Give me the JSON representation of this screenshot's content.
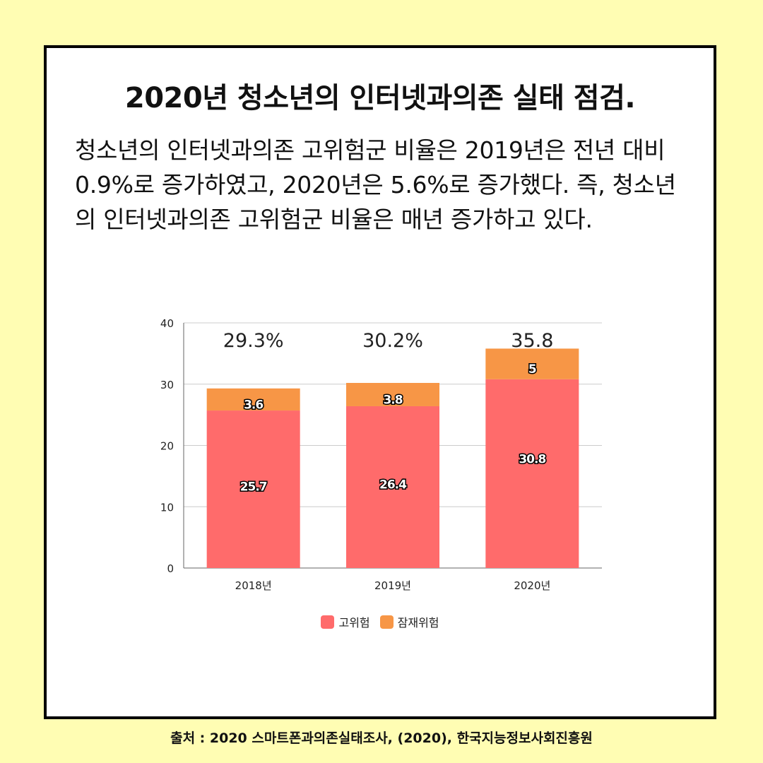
{
  "title": "2020년 청소년의 인터넷과의존 실태 점검.",
  "description": "청소년의 인터넷과의존 고위험군 비율은 2019년은 전년 대비 0.9%로 증가하였고, 2020년은 5.6%로 증가했다. 즉, 청소년의 인터넷과의존 고위험군 비율은 매년 증가하고 있다.",
  "source": "출처 : 2020 스마트폰과의존실태조사, (2020), 한국지능정보사회진흥원",
  "colors": {
    "background": "#fffdb3",
    "card": "#ffffff",
    "high_risk": "#ff6b6b",
    "potential_risk": "#f79646"
  },
  "chart_data": {
    "type": "bar",
    "stacked": true,
    "categories": [
      "2018년",
      "2019년",
      "2020년"
    ],
    "series": [
      {
        "name": "고위험",
        "values": [
          25.7,
          26.4,
          30.8
        ],
        "labels": [
          "25.7",
          "26.4",
          "30.8"
        ],
        "color": "#ff6b6b"
      },
      {
        "name": "잠재위험",
        "values": [
          3.6,
          3.8,
          5
        ],
        "labels": [
          "3.6",
          "3.8",
          "5"
        ],
        "color": "#f79646"
      }
    ],
    "totals": [
      "29.3%",
      "30.2%",
      "35.8"
    ],
    "ylim": [
      0,
      40
    ],
    "yticks": [
      "0",
      "10",
      "20",
      "30",
      "40"
    ],
    "grid": true,
    "legend": "bottom"
  }
}
